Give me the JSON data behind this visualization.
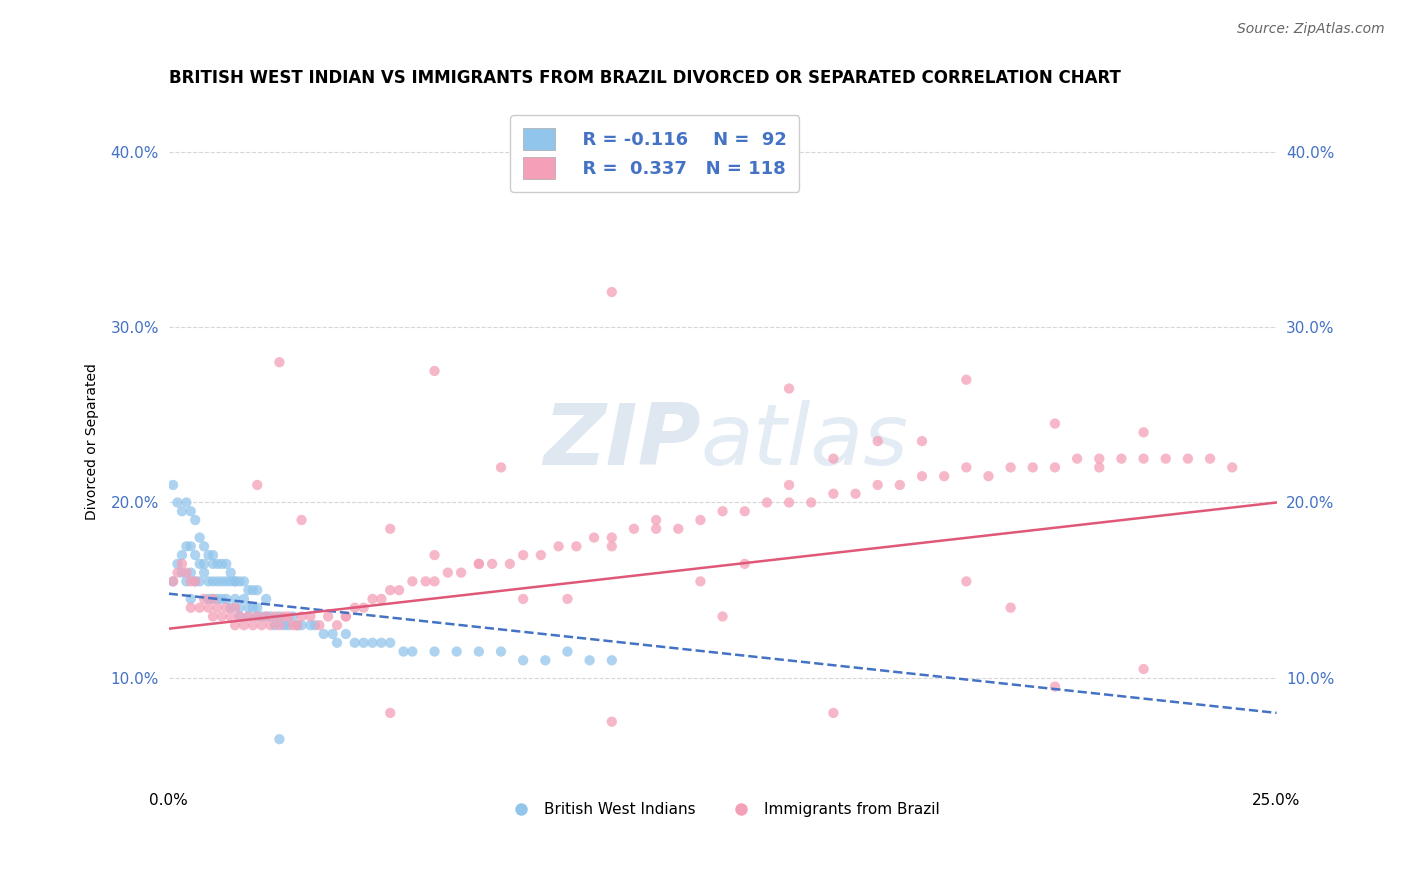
{
  "title": "BRITISH WEST INDIAN VS IMMIGRANTS FROM BRAZIL DIVORCED OR SEPARATED CORRELATION CHART",
  "source": "Source: ZipAtlas.com",
  "ylabel": "Divorced or Separated",
  "xlim": [
    0.0,
    0.25
  ],
  "ylim": [
    0.04,
    0.43
  ],
  "ytick_positions": [
    0.1,
    0.2,
    0.3,
    0.4
  ],
  "ytick_labels": [
    "10.0%",
    "20.0%",
    "30.0%",
    "40.0%"
  ],
  "xtick_positions": [
    0.0,
    0.25
  ],
  "xtick_labels": [
    "0.0%",
    "25.0%"
  ],
  "legend_blue_r": "R = -0.116",
  "legend_blue_n": "N =  92",
  "legend_pink_r": "R =  0.337",
  "legend_pink_n": "N = 118",
  "blue_color": "#92C5EB",
  "pink_color": "#F4A0B8",
  "blue_line_color": "#4472C4",
  "pink_line_color": "#E05878",
  "watermark_zip": "ZIP",
  "watermark_atlas": "atlas",
  "title_fontsize": 12,
  "axis_label_fontsize": 10,
  "tick_fontsize": 11,
  "blue_scatter_x": [
    0.001,
    0.002,
    0.003,
    0.003,
    0.004,
    0.004,
    0.005,
    0.005,
    0.005,
    0.006,
    0.006,
    0.007,
    0.007,
    0.008,
    0.008,
    0.009,
    0.009,
    0.01,
    0.01,
    0.01,
    0.011,
    0.011,
    0.012,
    0.012,
    0.013,
    0.013,
    0.014,
    0.014,
    0.015,
    0.015,
    0.016,
    0.016,
    0.017,
    0.018,
    0.018,
    0.019,
    0.02,
    0.02,
    0.021,
    0.022,
    0.023,
    0.024,
    0.025,
    0.026,
    0.027,
    0.028,
    0.029,
    0.03,
    0.032,
    0.033,
    0.035,
    0.037,
    0.038,
    0.04,
    0.042,
    0.044,
    0.046,
    0.048,
    0.05,
    0.053,
    0.055,
    0.06,
    0.065,
    0.07,
    0.075,
    0.08,
    0.085,
    0.09,
    0.095,
    0.1,
    0.001,
    0.002,
    0.003,
    0.004,
    0.005,
    0.006,
    0.007,
    0.008,
    0.009,
    0.01,
    0.011,
    0.012,
    0.013,
    0.014,
    0.015,
    0.016,
    0.017,
    0.018,
    0.019,
    0.02,
    0.022,
    0.025
  ],
  "blue_scatter_y": [
    0.155,
    0.165,
    0.17,
    0.16,
    0.175,
    0.155,
    0.175,
    0.16,
    0.145,
    0.17,
    0.155,
    0.165,
    0.155,
    0.16,
    0.165,
    0.155,
    0.145,
    0.165,
    0.155,
    0.145,
    0.155,
    0.145,
    0.155,
    0.145,
    0.155,
    0.145,
    0.155,
    0.14,
    0.155,
    0.145,
    0.14,
    0.135,
    0.145,
    0.14,
    0.135,
    0.14,
    0.135,
    0.14,
    0.135,
    0.135,
    0.135,
    0.13,
    0.135,
    0.13,
    0.13,
    0.135,
    0.13,
    0.13,
    0.13,
    0.13,
    0.125,
    0.125,
    0.12,
    0.125,
    0.12,
    0.12,
    0.12,
    0.12,
    0.12,
    0.115,
    0.115,
    0.115,
    0.115,
    0.115,
    0.115,
    0.11,
    0.11,
    0.115,
    0.11,
    0.11,
    0.21,
    0.2,
    0.195,
    0.2,
    0.195,
    0.19,
    0.18,
    0.175,
    0.17,
    0.17,
    0.165,
    0.165,
    0.165,
    0.16,
    0.155,
    0.155,
    0.155,
    0.15,
    0.15,
    0.15,
    0.145,
    0.065
  ],
  "pink_scatter_x": [
    0.001,
    0.002,
    0.003,
    0.004,
    0.005,
    0.005,
    0.006,
    0.007,
    0.008,
    0.009,
    0.01,
    0.01,
    0.011,
    0.012,
    0.013,
    0.014,
    0.015,
    0.015,
    0.016,
    0.017,
    0.018,
    0.019,
    0.02,
    0.021,
    0.022,
    0.023,
    0.024,
    0.025,
    0.026,
    0.027,
    0.028,
    0.029,
    0.03,
    0.032,
    0.034,
    0.036,
    0.038,
    0.04,
    0.042,
    0.044,
    0.046,
    0.048,
    0.05,
    0.052,
    0.055,
    0.058,
    0.06,
    0.063,
    0.066,
    0.07,
    0.073,
    0.077,
    0.08,
    0.084,
    0.088,
    0.092,
    0.096,
    0.1,
    0.105,
    0.11,
    0.115,
    0.12,
    0.125,
    0.13,
    0.135,
    0.14,
    0.145,
    0.15,
    0.155,
    0.16,
    0.165,
    0.17,
    0.175,
    0.18,
    0.185,
    0.19,
    0.195,
    0.2,
    0.205,
    0.21,
    0.215,
    0.22,
    0.225,
    0.23,
    0.235,
    0.24,
    0.04,
    0.06,
    0.08,
    0.1,
    0.12,
    0.14,
    0.16,
    0.18,
    0.2,
    0.22,
    0.03,
    0.05,
    0.07,
    0.09,
    0.11,
    0.13,
    0.15,
    0.17,
    0.19,
    0.21,
    0.02,
    0.06,
    0.1,
    0.14,
    0.18,
    0.22,
    0.05,
    0.1,
    0.15,
    0.2,
    0.025,
    0.075,
    0.125
  ],
  "pink_scatter_y": [
    0.155,
    0.16,
    0.165,
    0.16,
    0.155,
    0.14,
    0.155,
    0.14,
    0.145,
    0.14,
    0.145,
    0.135,
    0.14,
    0.135,
    0.14,
    0.135,
    0.14,
    0.13,
    0.135,
    0.13,
    0.135,
    0.13,
    0.135,
    0.13,
    0.135,
    0.13,
    0.135,
    0.13,
    0.135,
    0.135,
    0.13,
    0.13,
    0.135,
    0.135,
    0.13,
    0.135,
    0.13,
    0.135,
    0.14,
    0.14,
    0.145,
    0.145,
    0.15,
    0.15,
    0.155,
    0.155,
    0.155,
    0.16,
    0.16,
    0.165,
    0.165,
    0.165,
    0.17,
    0.17,
    0.175,
    0.175,
    0.18,
    0.18,
    0.185,
    0.19,
    0.185,
    0.19,
    0.195,
    0.195,
    0.2,
    0.2,
    0.2,
    0.205,
    0.205,
    0.21,
    0.21,
    0.215,
    0.215,
    0.22,
    0.215,
    0.22,
    0.22,
    0.22,
    0.225,
    0.225,
    0.225,
    0.225,
    0.225,
    0.225,
    0.225,
    0.22,
    0.135,
    0.17,
    0.145,
    0.175,
    0.155,
    0.21,
    0.235,
    0.155,
    0.245,
    0.24,
    0.19,
    0.185,
    0.165,
    0.145,
    0.185,
    0.165,
    0.225,
    0.235,
    0.14,
    0.22,
    0.21,
    0.275,
    0.32,
    0.265,
    0.27,
    0.105,
    0.08,
    0.075,
    0.08,
    0.095,
    0.28,
    0.22,
    0.135
  ],
  "blue_trend_x": [
    0.0,
    0.25
  ],
  "blue_trend_y": [
    0.148,
    0.08
  ],
  "pink_trend_x": [
    0.0,
    0.25
  ],
  "pink_trend_y": [
    0.128,
    0.2
  ]
}
